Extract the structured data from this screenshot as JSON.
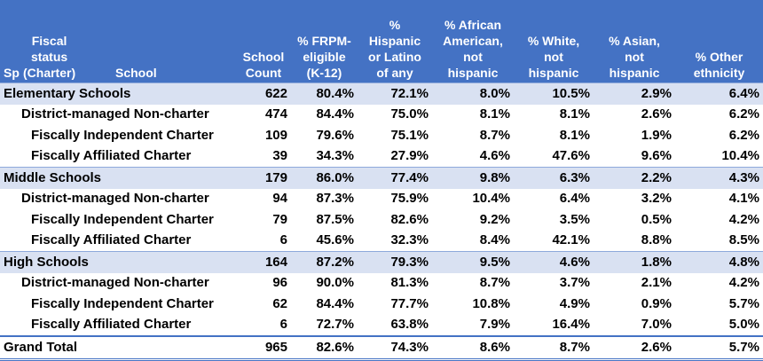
{
  "header": {
    "fiscal_status": [
      "Fiscal",
      "status",
      "(Charter)"
    ],
    "sp": "Sp",
    "school": "School",
    "columns": [
      [
        "School",
        "Count"
      ],
      [
        "% FRPM-",
        "eligible",
        "(K-12)"
      ],
      [
        "%",
        "Hispanic",
        "or Latino",
        "of any"
      ],
      [
        "% African",
        "American,",
        "not",
        "hispanic"
      ],
      [
        "% White,",
        "not",
        "hispanic"
      ],
      [
        "% Asian,",
        "not",
        "hispanic"
      ],
      [
        "% Other",
        "ethnicity"
      ]
    ]
  },
  "rows": [
    {
      "label": "Elementary Schools",
      "count": "622",
      "frpm": "80.4%",
      "hispanic": "72.1%",
      "african": "8.0%",
      "white": "10.5%",
      "asian": "2.9%",
      "other": "6.4%"
    },
    {
      "label": "District-managed Non-charter",
      "count": "474",
      "frpm": "84.4%",
      "hispanic": "75.0%",
      "african": "8.1%",
      "white": "8.1%",
      "asian": "2.6%",
      "other": "6.2%"
    },
    {
      "label": "Fiscally Independent Charter",
      "count": "109",
      "frpm": "79.6%",
      "hispanic": "75.1%",
      "african": "8.7%",
      "white": "8.1%",
      "asian": "1.9%",
      "other": "6.2%"
    },
    {
      "label": "Fiscally Affiliated Charter",
      "count": "39",
      "frpm": "34.3%",
      "hispanic": "27.9%",
      "african": "4.6%",
      "white": "47.6%",
      "asian": "9.6%",
      "other": "10.4%"
    },
    {
      "label": "Middle Schools",
      "count": "179",
      "frpm": "86.0%",
      "hispanic": "77.4%",
      "african": "9.8%",
      "white": "6.3%",
      "asian": "2.2%",
      "other": "4.3%"
    },
    {
      "label": "District-managed Non-charter",
      "count": "94",
      "frpm": "87.3%",
      "hispanic": "75.9%",
      "african": "10.4%",
      "white": "6.4%",
      "asian": "3.2%",
      "other": "4.1%"
    },
    {
      "label": "Fiscally Independent Charter",
      "count": "79",
      "frpm": "87.5%",
      "hispanic": "82.6%",
      "african": "9.2%",
      "white": "3.5%",
      "asian": "0.5%",
      "other": "4.2%"
    },
    {
      "label": "Fiscally Affiliated Charter",
      "count": "6",
      "frpm": "45.6%",
      "hispanic": "32.3%",
      "african": "8.4%",
      "white": "42.1%",
      "asian": "8.8%",
      "other": "8.5%"
    },
    {
      "label": "High Schools",
      "count": "164",
      "frpm": "87.2%",
      "hispanic": "79.3%",
      "african": "9.5%",
      "white": "4.6%",
      "asian": "1.8%",
      "other": "4.8%"
    },
    {
      "label": "District-managed Non-charter",
      "count": "96",
      "frpm": "90.0%",
      "hispanic": "81.3%",
      "african": "8.7%",
      "white": "3.7%",
      "asian": "2.1%",
      "other": "4.2%"
    },
    {
      "label": "Fiscally Independent Charter",
      "count": "62",
      "frpm": "84.4%",
      "hispanic": "77.7%",
      "african": "10.8%",
      "white": "4.9%",
      "asian": "0.9%",
      "other": "5.7%"
    },
    {
      "label": "Fiscally Affiliated Charter",
      "count": "6",
      "frpm": "72.7%",
      "hispanic": "63.8%",
      "african": "7.9%",
      "white": "16.4%",
      "asian": "7.0%",
      "other": "5.0%"
    },
    {
      "label": "Grand Total",
      "count": "965",
      "frpm": "82.6%",
      "hispanic": "74.3%",
      "african": "8.6%",
      "white": "8.7%",
      "asian": "2.6%",
      "other": "5.7%"
    }
  ]
}
